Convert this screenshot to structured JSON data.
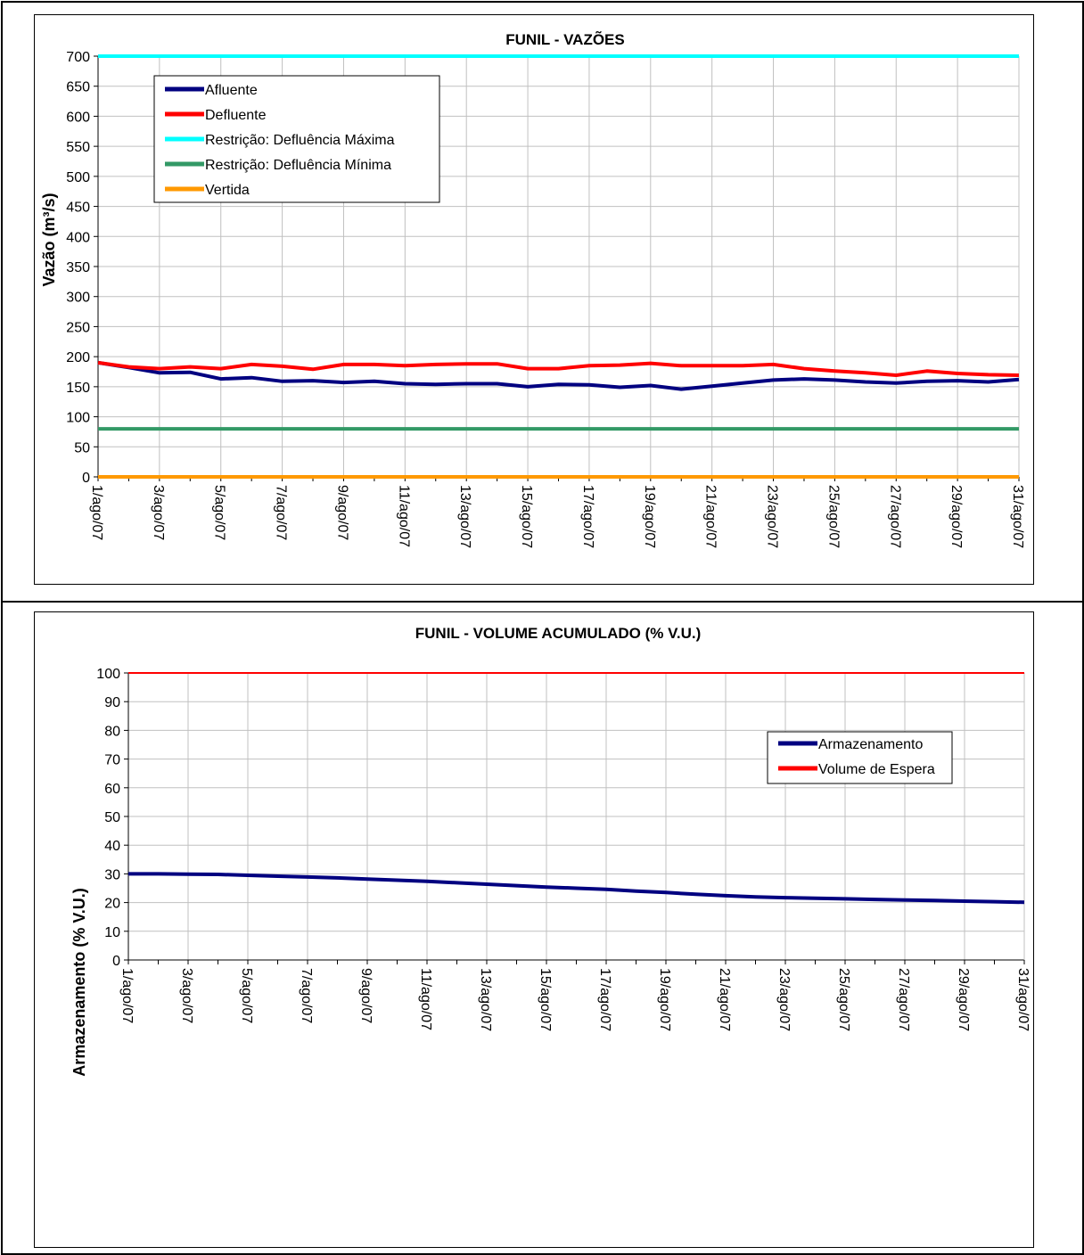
{
  "colors": {
    "afluente": "#000080",
    "defluente": "#ff0000",
    "max": "#00ffff",
    "min": "#339966",
    "vertida": "#ff9900",
    "armazenamento": "#000080",
    "espera": "#ff0000",
    "grid": "#c0c0c0"
  },
  "chart_data": [
    {
      "type": "line",
      "title": "FUNIL - VAZÕES",
      "ylabel": "Vazão (m³/s)",
      "xlabel": "",
      "ylim": [
        0,
        700
      ],
      "yticks": [
        0,
        50,
        100,
        150,
        200,
        250,
        300,
        350,
        400,
        450,
        500,
        550,
        600,
        650,
        700
      ],
      "grid": true,
      "legend_position": "top-left",
      "x": [
        "1/ago/07",
        "2/ago/07",
        "3/ago/07",
        "4/ago/07",
        "5/ago/07",
        "6/ago/07",
        "7/ago/07",
        "8/ago/07",
        "9/ago/07",
        "10/ago/07",
        "11/ago/07",
        "12/ago/07",
        "13/ago/07",
        "14/ago/07",
        "15/ago/07",
        "16/ago/07",
        "17/ago/07",
        "18/ago/07",
        "19/ago/07",
        "20/ago/07",
        "21/ago/07",
        "22/ago/07",
        "23/ago/07",
        "24/ago/07",
        "25/ago/07",
        "26/ago/07",
        "27/ago/07",
        "28/ago/07",
        "29/ago/07",
        "30/ago/07",
        "31/ago/07"
      ],
      "x_tick_labels": [
        "1/ago/07",
        "3/ago/07",
        "5/ago/07",
        "7/ago/07",
        "9/ago/07",
        "11/ago/07",
        "13/ago/07",
        "15/ago/07",
        "17/ago/07",
        "19/ago/07",
        "21/ago/07",
        "23/ago/07",
        "25/ago/07",
        "27/ago/07",
        "29/ago/07",
        "31/ago/07"
      ],
      "series": [
        {
          "name": "Afluente",
          "color_key": "afluente",
          "values": [
            190,
            182,
            173,
            174,
            163,
            165,
            159,
            160,
            157,
            159,
            155,
            154,
            155,
            155,
            150,
            154,
            153,
            149,
            152,
            146,
            151,
            156,
            161,
            163,
            161,
            158,
            156,
            159,
            160,
            158,
            162
          ]
        },
        {
          "name": "Defluente",
          "color_key": "defluente",
          "values": [
            190,
            183,
            180,
            183,
            180,
            187,
            184,
            179,
            187,
            187,
            185,
            187,
            188,
            188,
            180,
            180,
            185,
            186,
            189,
            185,
            185,
            185,
            187,
            180,
            176,
            173,
            169,
            176,
            172,
            170,
            169
          ]
        },
        {
          "name": "Restrição: Defluência Máxima",
          "color_key": "max",
          "values": [
            700,
            700,
            700,
            700,
            700,
            700,
            700,
            700,
            700,
            700,
            700,
            700,
            700,
            700,
            700,
            700,
            700,
            700,
            700,
            700,
            700,
            700,
            700,
            700,
            700,
            700,
            700,
            700,
            700,
            700,
            700
          ]
        },
        {
          "name": "Restrição: Defluência Mínima",
          "color_key": "min",
          "values": [
            80,
            80,
            80,
            80,
            80,
            80,
            80,
            80,
            80,
            80,
            80,
            80,
            80,
            80,
            80,
            80,
            80,
            80,
            80,
            80,
            80,
            80,
            80,
            80,
            80,
            80,
            80,
            80,
            80,
            80,
            80
          ]
        },
        {
          "name": "Vertida",
          "color_key": "vertida",
          "values": [
            0,
            0,
            0,
            0,
            0,
            0,
            0,
            0,
            0,
            0,
            0,
            0,
            0,
            0,
            0,
            0,
            0,
            0,
            0,
            0,
            0,
            0,
            0,
            0,
            0,
            0,
            0,
            0,
            0,
            0,
            0
          ]
        }
      ]
    },
    {
      "type": "line",
      "title": "FUNIL - VOLUME ACUMULADO (% V.U.)",
      "ylabel": "Armazenamento (% V.U.)",
      "xlabel": "",
      "ylim": [
        0,
        100
      ],
      "yticks": [
        0,
        10,
        20,
        30,
        40,
        50,
        60,
        70,
        80,
        90,
        100
      ],
      "grid": true,
      "legend_position": "top-right",
      "x": [
        "1/ago/07",
        "2/ago/07",
        "3/ago/07",
        "4/ago/07",
        "5/ago/07",
        "6/ago/07",
        "7/ago/07",
        "8/ago/07",
        "9/ago/07",
        "10/ago/07",
        "11/ago/07",
        "12/ago/07",
        "13/ago/07",
        "14/ago/07",
        "15/ago/07",
        "16/ago/07",
        "17/ago/07",
        "18/ago/07",
        "19/ago/07",
        "20/ago/07",
        "21/ago/07",
        "22/ago/07",
        "23/ago/07",
        "24/ago/07",
        "25/ago/07",
        "26/ago/07",
        "27/ago/07",
        "28/ago/07",
        "29/ago/07",
        "30/ago/07",
        "31/ago/07"
      ],
      "x_tick_labels": [
        "1/ago/07",
        "3/ago/07",
        "5/ago/07",
        "7/ago/07",
        "9/ago/07",
        "11/ago/07",
        "13/ago/07",
        "15/ago/07",
        "17/ago/07",
        "19/ago/07",
        "21/ago/07",
        "23/ago/07",
        "25/ago/07",
        "27/ago/07",
        "29/ago/07",
        "31/ago/07"
      ],
      "series": [
        {
          "name": "Armazenamento",
          "color_key": "armazenamento",
          "values": [
            30.0,
            30.0,
            29.9,
            29.8,
            29.5,
            29.2,
            28.9,
            28.6,
            28.2,
            27.8,
            27.4,
            26.9,
            26.4,
            25.9,
            25.4,
            25.0,
            24.6,
            24.0,
            23.5,
            22.9,
            22.4,
            22.0,
            21.7,
            21.5,
            21.3,
            21.1,
            20.9,
            20.7,
            20.5,
            20.3,
            20.1
          ]
        },
        {
          "name": "Volume de Espera",
          "color_key": "espera",
          "values": [
            100,
            100,
            100,
            100,
            100,
            100,
            100,
            100,
            100,
            100,
            100,
            100,
            100,
            100,
            100,
            100,
            100,
            100,
            100,
            100,
            100,
            100,
            100,
            100,
            100,
            100,
            100,
            100,
            100,
            100,
            100
          ]
        }
      ]
    }
  ]
}
